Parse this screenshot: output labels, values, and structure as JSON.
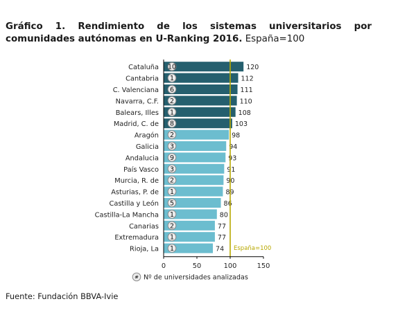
{
  "title": {
    "bold": "Gráfico 1. Rendimiento de los sistemas universitarios por comunidades autónomas en U-Ranking 2016.",
    "normal": "España=100"
  },
  "source": "Fuente: Fundación BBVA-Ivie",
  "colors": {
    "dark_bar": "#255f6e",
    "light_bar": "#6cbdcf",
    "reference_line": "#b8a800",
    "badge_fill": "#ececec",
    "badge_stroke": "#8a8a8a",
    "axis": "#000000"
  },
  "chart_data": {
    "type": "bar",
    "orientation": "horizontal",
    "categories": [
      "Cataluña",
      "Cantabria",
      "C. Valenciana",
      "Navarra, C.F.",
      "Balears, Illes",
      "Madrid, C. de",
      "Aragón",
      "Galicia",
      "Andalucia",
      "País Vasco",
      "Murcia, R. de",
      "Asturias, P. de",
      "Castilla y León",
      "Castilla-La Mancha",
      "Canarias",
      "Extremadura",
      "Rioja, La"
    ],
    "values": [
      120,
      112,
      111,
      110,
      108,
      103,
      98,
      94,
      93,
      91,
      90,
      89,
      86,
      80,
      77,
      77,
      74
    ],
    "universities": [
      "10",
      "1",
      "6",
      "2",
      "1",
      "8",
      "2",
      "3",
      "9",
      "3",
      "2",
      "1",
      "5",
      "1",
      "2",
      "1",
      "1"
    ],
    "highlighted_count": 6,
    "xlim": [
      0,
      150
    ],
    "xticks": [
      "0",
      "50",
      "100",
      "150"
    ],
    "reference": {
      "value": 100,
      "label": "España=100"
    },
    "legend": {
      "symbol": "#",
      "label": "Nº de universidades analizadas"
    }
  }
}
